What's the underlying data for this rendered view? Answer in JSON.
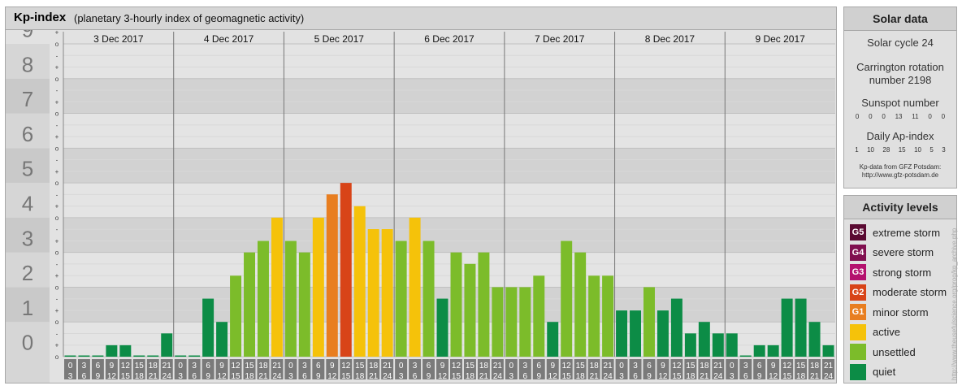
{
  "header": {
    "title": "Kp-index",
    "subtitle": "(planetary 3-hourly index of geomagnetic activity)"
  },
  "solar": {
    "title": "Solar data",
    "cycle": "Solar cycle 24",
    "carrington_line1": "Carrington rotation",
    "carrington_line2": "number 2198",
    "sunspot_label": "Sunspot number",
    "sunspot_values": [
      "0",
      "0",
      "0",
      "13",
      "11",
      "0",
      "0"
    ],
    "ap_label": "Daily Ap-index",
    "ap_values": [
      "1",
      "10",
      "28",
      "15",
      "10",
      "5",
      "3"
    ],
    "source_line1": "Kp-data from GFZ Potsdam:",
    "source_line2": "http://www.gfz-potsdam.de"
  },
  "levels": {
    "title": "Activity levels",
    "items": [
      {
        "badge": "G5",
        "label": "extreme storm",
        "color": "#5a0a32"
      },
      {
        "badge": "G4",
        "label": "severe storm",
        "color": "#800f4f"
      },
      {
        "badge": "G3",
        "label": "strong storm",
        "color": "#b4116e"
      },
      {
        "badge": "G2",
        "label": "moderate storm",
        "color": "#d84418"
      },
      {
        "badge": "G1",
        "label": "minor storm",
        "color": "#e87e20"
      },
      {
        "badge": "",
        "label": "active",
        "color": "#f5c20a"
      },
      {
        "badge": "",
        "label": "unsettled",
        "color": "#7cbc2a"
      },
      {
        "badge": "",
        "label": "quiet",
        "color": "#0c8c46"
      }
    ]
  },
  "watermark": "http://www.theusefulscience.org/prog/kp_archive.php",
  "chart_data": {
    "type": "bar",
    "title": "Kp-index",
    "subtitle": "(planetary 3-hourly index of geomagnetic activity)",
    "ylim": [
      0,
      9
    ],
    "y_ticks": [
      "0",
      "1",
      "2",
      "3",
      "4",
      "5",
      "6",
      "7",
      "8",
      "9"
    ],
    "y_minor_marks": [
      "o",
      "+",
      "-"
    ],
    "days": [
      "3 Dec 2017",
      "4 Dec 2017",
      "5 Dec 2017",
      "6 Dec 2017",
      "7 Dec 2017",
      "8 Dec 2017",
      "9 Dec 2017"
    ],
    "interval_labels": [
      [
        "0",
        "3"
      ],
      [
        "3",
        "6"
      ],
      [
        "6",
        "9"
      ],
      [
        "9",
        "12"
      ],
      [
        "12",
        "15"
      ],
      [
        "15",
        "18"
      ],
      [
        "18",
        "21"
      ],
      [
        "21",
        "24"
      ]
    ],
    "values": [
      0.0,
      0.0,
      0.0,
      0.33,
      0.33,
      0.0,
      0.0,
      0.67,
      0.0,
      0.0,
      1.67,
      1.0,
      2.33,
      3.0,
      3.33,
      4.0,
      3.33,
      3.0,
      4.0,
      4.67,
      5.0,
      4.33,
      3.67,
      3.67,
      3.33,
      4.0,
      3.33,
      1.67,
      3.0,
      2.67,
      3.0,
      2.0,
      2.0,
      2.0,
      2.33,
      1.0,
      3.33,
      3.0,
      2.33,
      2.33,
      1.33,
      1.33,
      2.0,
      1.33,
      1.67,
      0.67,
      1.0,
      0.67,
      0.67,
      0.0,
      0.33,
      0.33,
      1.67,
      1.67,
      1.0,
      0.33
    ],
    "colors": {
      "quiet": "#0c8c46",
      "unsettled": "#7cbc2a",
      "active": "#f5c20a",
      "minor_storm": "#e87e20",
      "moderate_storm": "#d84418"
    }
  }
}
